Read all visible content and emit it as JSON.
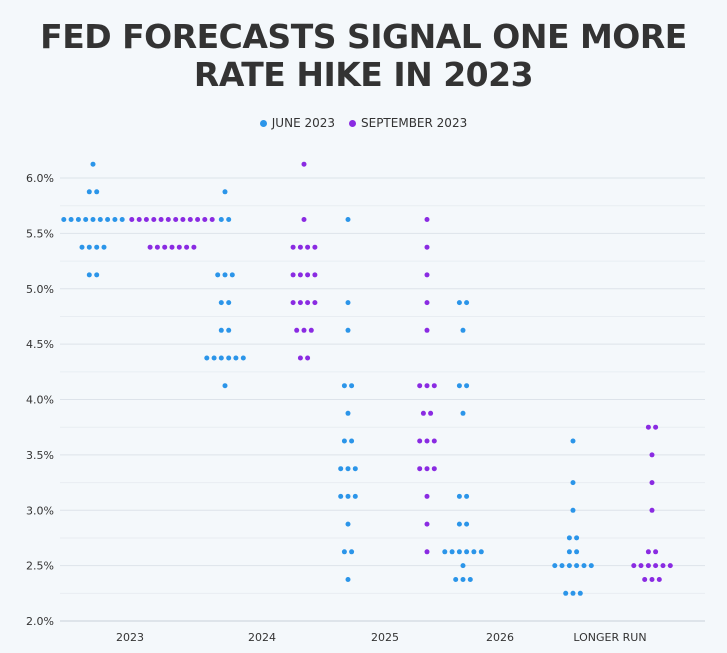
{
  "title": "FED FORECASTS SIGNAL ONE MORE\nRATE HIKE IN 2023",
  "colors": {
    "june": "#2b95e9",
    "september": "#8a2be2",
    "grid": "#dde3ea"
  },
  "chart_data": {
    "type": "scatter",
    "title": "FED FORECASTS SIGNAL ONE MORE RATE HIKE IN 2023",
    "categories": [
      "2023",
      "2024",
      "2025",
      "2026",
      "LONGER RUN"
    ],
    "ylim": [
      2.0,
      6.25
    ],
    "yticks": [
      "2.0%",
      "2.5%",
      "3.0%",
      "3.5%",
      "4.0%",
      "4.5%",
      "5.0%",
      "5.5%",
      "6.0%"
    ],
    "ytick_values": [
      2.0,
      2.5,
      3.0,
      3.5,
      4.0,
      4.5,
      5.0,
      5.5,
      6.0
    ],
    "grid": true,
    "legend": "top-center",
    "series": [
      {
        "name": "JUNE 2023",
        "color": "#2b95e9",
        "dots": [
          [
            [
              6.125,
              1
            ],
            [
              5.875,
              2
            ],
            [
              5.625,
              9
            ],
            [
              5.375,
              4
            ],
            [
              5.125,
              2
            ]
          ],
          [
            [
              5.875,
              1
            ],
            [
              5.625,
              2
            ],
            [
              5.125,
              3
            ],
            [
              4.875,
              2
            ],
            [
              4.625,
              2
            ],
            [
              4.375,
              6
            ],
            [
              4.125,
              1
            ]
          ],
          [
            [
              5.625,
              1
            ],
            [
              4.875,
              1
            ],
            [
              4.625,
              1
            ],
            [
              4.125,
              2
            ],
            [
              3.875,
              1
            ],
            [
              3.625,
              2
            ],
            [
              3.375,
              3
            ],
            [
              3.125,
              3
            ],
            [
              2.875,
              1
            ],
            [
              2.625,
              2
            ],
            [
              2.375,
              1
            ]
          ],
          [
            [
              4.875,
              2
            ],
            [
              4.625,
              1
            ],
            [
              4.125,
              2
            ],
            [
              3.875,
              1
            ],
            [
              3.125,
              2
            ],
            [
              2.875,
              2
            ],
            [
              2.625,
              6
            ],
            [
              2.5,
              1
            ],
            [
              2.375,
              3
            ]
          ],
          [
            [
              3.625,
              1
            ],
            [
              3.25,
              1
            ],
            [
              3.0,
              1
            ],
            [
              2.75,
              2
            ],
            [
              2.625,
              2
            ],
            [
              2.5,
              6
            ],
            [
              2.25,
              3
            ]
          ]
        ]
      },
      {
        "name": "SEPTEMBER 2023",
        "color": "#8a2be2",
        "dots": [
          [
            [
              5.625,
              12
            ],
            [
              5.375,
              7
            ]
          ],
          [
            [
              6.125,
              1
            ],
            [
              5.625,
              1
            ],
            [
              5.375,
              4
            ],
            [
              5.125,
              4
            ],
            [
              4.875,
              4
            ],
            [
              4.625,
              3
            ],
            [
              4.375,
              2
            ]
          ],
          [
            [
              5.625,
              1
            ],
            [
              5.375,
              1
            ],
            [
              5.125,
              1
            ],
            [
              4.875,
              1
            ],
            [
              4.625,
              1
            ],
            [
              4.125,
              3
            ],
            [
              3.875,
              2
            ],
            [
              3.625,
              3
            ],
            [
              3.375,
              3
            ],
            [
              3.125,
              1
            ],
            [
              2.875,
              1
            ],
            [
              2.625,
              1
            ]
          ],
          [],
          [
            [
              3.75,
              2
            ],
            [
              3.5,
              1
            ],
            [
              3.25,
              1
            ],
            [
              3.0,
              1
            ],
            [
              2.625,
              2
            ],
            [
              2.5,
              6
            ],
            [
              2.375,
              3
            ]
          ]
        ]
      }
    ]
  }
}
